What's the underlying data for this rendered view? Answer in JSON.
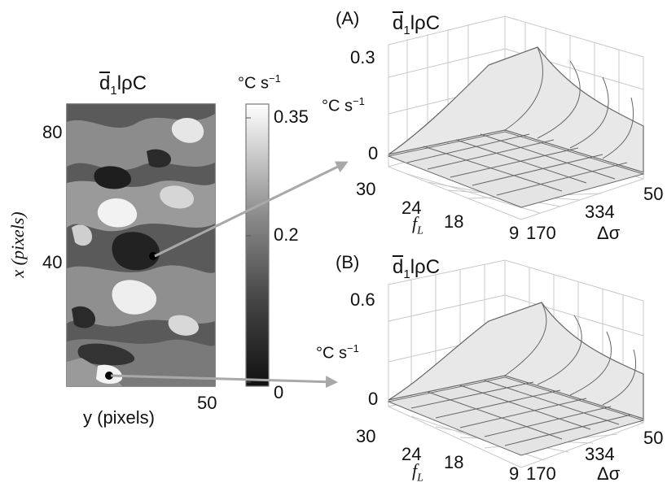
{
  "figure": {
    "map": {
      "title_bar": "d",
      "title_sub": "1",
      "title_rest": "lρC",
      "x_axis_label": "x (pixels)",
      "y_axis_label": "y (pixels)",
      "x_ticks": [
        "80",
        "40"
      ],
      "y_ticks": [
        "50"
      ]
    },
    "colorbar": {
      "unit": "°C s",
      "unit_exp": "−1",
      "ticks": [
        "0.35",
        "0.2",
        "0"
      ],
      "range": [
        0,
        0.35
      ],
      "color_low": "#111111",
      "color_high": "#ffffff"
    },
    "panel_a": {
      "tag": "(A)",
      "title_bar": "d",
      "title_sub": "1",
      "title_rest": "lρC",
      "z_unit": "°C s",
      "z_unit_exp": "−1",
      "z_ticks": [
        "0.3",
        "0"
      ],
      "fl_label": "f",
      "fl_sub": "L",
      "fl_ticks": [
        "30",
        "24",
        "18",
        "9"
      ],
      "ds_label": "Δσ",
      "ds_ticks": [
        "50",
        "334",
        "170"
      ]
    },
    "panel_b": {
      "tag": "(B)",
      "title_bar": "d",
      "title_sub": "1",
      "title_rest": "lρC",
      "z_unit": "°C s",
      "z_unit_exp": "−1",
      "z_ticks": [
        "0.6",
        "0"
      ],
      "fl_label": "f",
      "fl_sub": "L",
      "fl_ticks": [
        "30",
        "24",
        "18",
        "9"
      ],
      "ds_label": "Δσ",
      "ds_ticks": [
        "50",
        "334",
        "170"
      ]
    },
    "colors": {
      "surface": "#e8e8e8",
      "wire": "#666666",
      "grid": "#c8c8c8",
      "arrow": "#a8a8a8"
    }
  }
}
